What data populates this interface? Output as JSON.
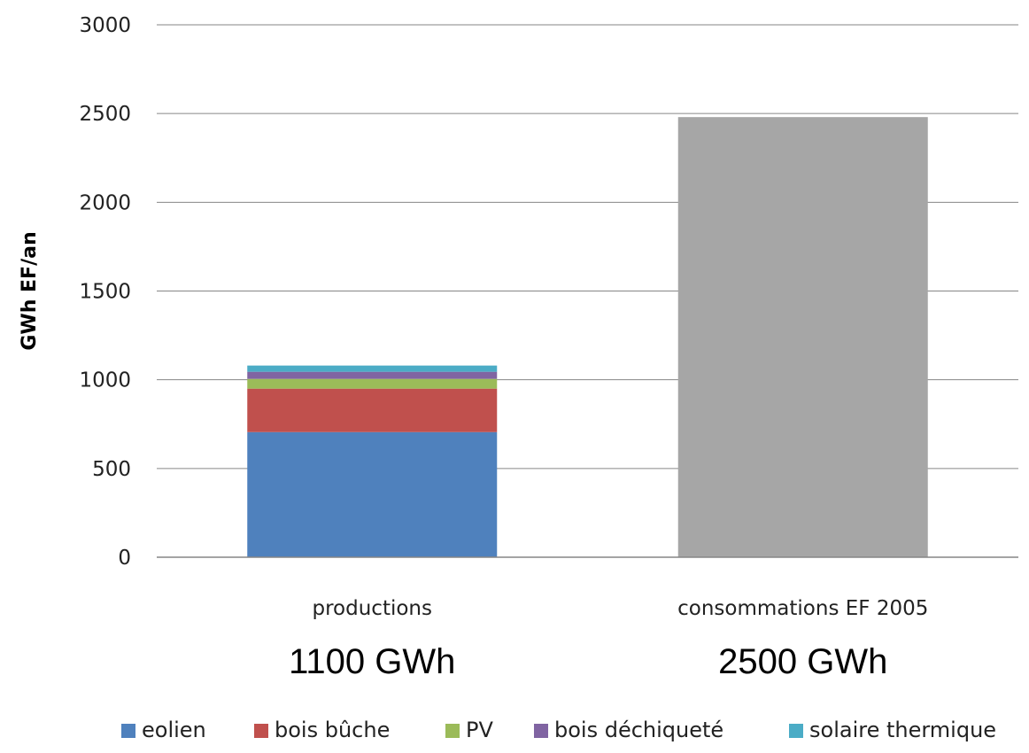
{
  "chart_data": {
    "type": "bar",
    "stacked": true,
    "ylabel": "GWh EF/an",
    "ylim": [
      0,
      3000
    ],
    "yticks": [
      0,
      500,
      1000,
      1500,
      2000,
      2500,
      3000
    ],
    "grid": true,
    "legend_position": "bottom",
    "categories": [
      "productions",
      "consommations EF 2005"
    ],
    "totals_labels": [
      "1100 GWh",
      "2500 GWh"
    ],
    "series": [
      {
        "name": "eolien",
        "color": "#4F81BD",
        "values": [
          705,
          0
        ]
      },
      {
        "name": "bois bûche",
        "color": "#C0504D",
        "values": [
          245,
          0
        ]
      },
      {
        "name": "PV",
        "color": "#9BBB59",
        "values": [
          55,
          0
        ]
      },
      {
        "name": "bois déchiqueté",
        "color": "#8064A2",
        "values": [
          40,
          0
        ]
      },
      {
        "name": "solaire thermique",
        "color": "#4BACC6",
        "values": [
          35,
          0
        ]
      },
      {
        "color": "#A6A6A6",
        "values": [
          0,
          2480
        ]
      }
    ]
  }
}
